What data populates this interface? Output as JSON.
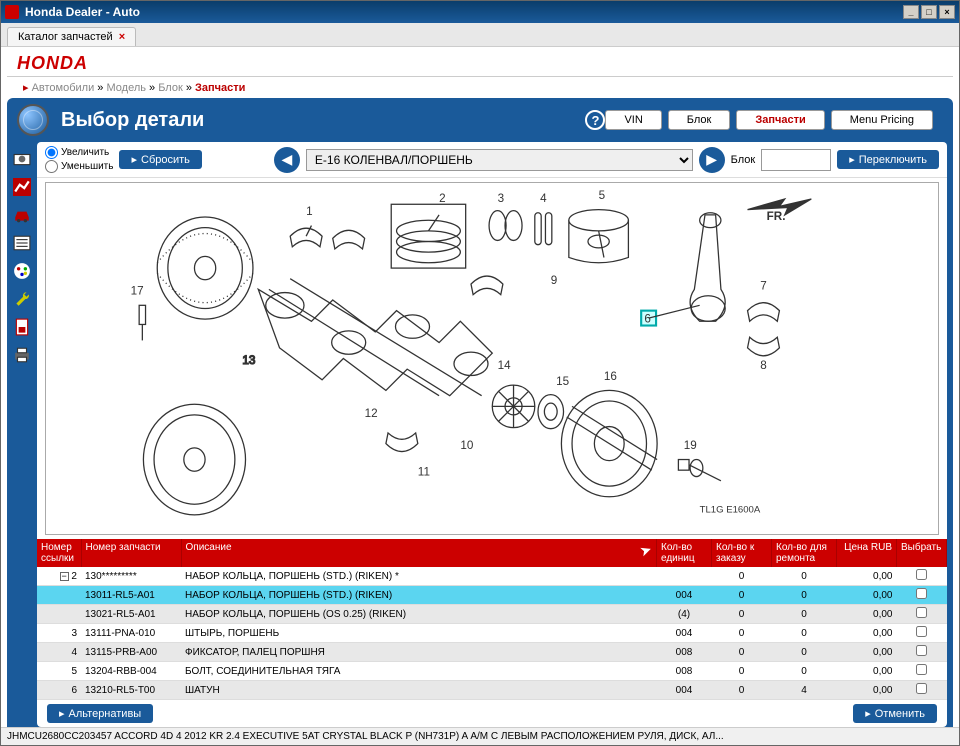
{
  "window": {
    "title": "Honda Dealer - Auto"
  },
  "tab": {
    "label": "Каталог запчастей"
  },
  "logo": "HONDA",
  "breadcrumb": {
    "items": [
      "Автомобили",
      "Модель",
      "Блок"
    ],
    "active": "Запчасти",
    "sep": " » "
  },
  "page": {
    "title": "Выбор детали"
  },
  "nav": {
    "vin": "VIN",
    "block": "Блок",
    "parts": "Запчасти",
    "pricing": "Menu Pricing"
  },
  "controls": {
    "zoom_in": "Увеличить",
    "zoom_out": "Уменьшить",
    "reset": "Сбросить",
    "dropdown_value": "E-16 КОЛЕНВАЛ/ПОРШЕНЬ",
    "block_label": "Блок",
    "block_value": "",
    "switch": "Переключить"
  },
  "diagram": {
    "numbers": [
      "17",
      "1",
      "2",
      "3",
      "4",
      "5",
      "6",
      "7",
      "8",
      "9",
      "10",
      "11",
      "12",
      "13",
      "14",
      "15",
      "16",
      "19"
    ],
    "fr_label": "FR.",
    "marking": "TL1G E1600A",
    "highlight_num": "6"
  },
  "table": {
    "headers": {
      "ref": "Номер ссылки",
      "partno": "Номер запчасти",
      "desc": "Описание",
      "units": "Кол-во единиц",
      "order": "Кол-во к заказу",
      "repair": "Кол-во для ремонта",
      "price": "Цена RUB",
      "select": "Выбрать"
    },
    "rows": [
      {
        "ref": "2",
        "partno": "130*********",
        "desc": "НАБОР КОЛЬЦА, ПОРШЕНЬ (STD.) (RIKEN) *",
        "units": "",
        "order": "0",
        "repair": "0",
        "price": "0,00",
        "parent": true,
        "alt": false
      },
      {
        "ref": "",
        "partno": "13011-RL5-A01",
        "desc": "НАБОР КОЛЬЦА, ПОРШЕНЬ (STD.) (RIKEN)",
        "units": "004",
        "order": "0",
        "repair": "0",
        "price": "0,00",
        "highlight": true
      },
      {
        "ref": "",
        "partno": "13021-RL5-A01",
        "desc": "НАБОР КОЛЬЦА, ПОРШЕНЬ (OS 0.25) (RIKEN)",
        "units": "(4)",
        "order": "0",
        "repair": "0",
        "price": "0,00",
        "alt": true
      },
      {
        "ref": "3",
        "partno": "13111-PNA-010",
        "desc": "ШТЫРЬ, ПОРШЕНЬ",
        "units": "004",
        "order": "0",
        "repair": "0",
        "price": "0,00",
        "alt": false
      },
      {
        "ref": "4",
        "partno": "13115-PRB-A00",
        "desc": "ФИКСАТОР, ПАЛЕЦ ПОРШНЯ",
        "units": "008",
        "order": "0",
        "repair": "0",
        "price": "0,00",
        "alt": true
      },
      {
        "ref": "5",
        "partno": "13204-RBB-004",
        "desc": "БОЛТ, СОЕДИНИТЕЛЬНАЯ ТЯГА",
        "units": "008",
        "order": "0",
        "repair": "0",
        "price": "0,00",
        "alt": false
      },
      {
        "ref": "6",
        "partno": "13210-RL5-T00",
        "desc": "ШАТУН",
        "units": "004",
        "order": "0",
        "repair": "4",
        "price": "0,00",
        "alt": true
      }
    ]
  },
  "bottom": {
    "alternatives": "Альтернативы",
    "cancel": "Отменить"
  },
  "status": "JHMCU2680CC203457   ACCORD 4D   4   2012   KR   2.4 EXECUTIVE   5AT   CRYSTAL BLACK P (NH731P)   A   А/М С ЛЕВЫМ РАСПОЛОЖЕНИЕМ РУЛЯ, ДИСК, АЛ...",
  "colors": {
    "brand": "#c00",
    "blue": "#1a5a9a",
    "highlight": "#5bd5f0",
    "header_red": "#c00"
  }
}
